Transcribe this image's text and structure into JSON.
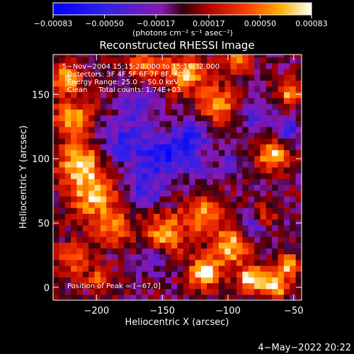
{
  "chart_data": {
    "type": "heatmap",
    "title": "Reconstructed RHESSI Image",
    "xlabel": "Heliocentric X (arcsec)",
    "ylabel": "Heliocentric Y (arcsec)",
    "xlim": [
      -233,
      -44
    ],
    "ylim": [
      -10,
      181
    ],
    "x_ticks": [
      -200,
      -150,
      -100,
      -50
    ],
    "x_tick_labels": [
      "−200",
      "−150",
      "−100",
      "−50"
    ],
    "y_ticks": [
      0,
      50,
      100,
      150
    ],
    "y_tick_labels": [
      "0",
      "50",
      "100",
      "150"
    ],
    "colorbar": {
      "min": -0.00083,
      "max": 0.00083,
      "ticks": [
        -0.00083,
        -0.0005,
        -0.00017,
        0.00017,
        0.0005,
        0.00083
      ],
      "tick_labels": [
        "−0.00083",
        "−0.00050",
        "−0.00017",
        "0.00017",
        "0.00050",
        "0.00083"
      ],
      "units_label": "(photons cm⁻² s⁻¹ asec⁻²)"
    },
    "annotations": [
      "5−Nov−2004 15:15:20.000 to 15:16:32.000",
      "Detectors: 3F 4F 5F 6F 7F 8F, Att 0",
      "Energy Range: 25.0 − 50.0 keV",
      "Clean     Total counts: 1.74E+03"
    ],
    "peak_label": "Position of Peak = [−67,0]",
    "timestamp": "4−May−2022 20:22",
    "grid": false,
    "blobs": [
      {
        "x": -225,
        "y": 160,
        "v": 0.00075,
        "r": 10
      },
      {
        "x": -220,
        "y": 130,
        "v": 0.0006,
        "r": 14
      },
      {
        "x": -215,
        "y": 95,
        "v": 0.0007,
        "r": 16
      },
      {
        "x": -205,
        "y": 70,
        "v": 0.00065,
        "r": 18
      },
      {
        "x": -190,
        "y": 45,
        "v": 0.0005,
        "r": 14
      },
      {
        "x": -222,
        "y": 20,
        "v": 0.00045,
        "r": 12
      },
      {
        "x": -200,
        "y": 5,
        "v": 0.0004,
        "r": 10
      },
      {
        "x": -165,
        "y": 170,
        "v": 0.00055,
        "r": 12
      },
      {
        "x": -135,
        "y": 165,
        "v": 0.0007,
        "r": 14
      },
      {
        "x": -110,
        "y": 140,
        "v": 0.0006,
        "r": 14
      },
      {
        "x": -95,
        "y": 175,
        "v": 0.0005,
        "r": 10
      },
      {
        "x": -150,
        "y": 40,
        "v": 0.0006,
        "r": 16
      },
      {
        "x": -120,
        "y": 55,
        "v": 0.0006,
        "r": 14
      },
      {
        "x": -100,
        "y": 30,
        "v": 0.0007,
        "r": 14
      },
      {
        "x": -120,
        "y": 10,
        "v": 0.0008,
        "r": 12
      },
      {
        "x": -85,
        "y": 5,
        "v": 0.00078,
        "r": 10
      },
      {
        "x": -67,
        "y": 0,
        "v": 0.00083,
        "r": 10
      },
      {
        "x": -55,
        "y": 15,
        "v": 0.0007,
        "r": 8
      },
      {
        "x": -68,
        "y": 100,
        "v": 0.00082,
        "r": 10
      },
      {
        "x": -55,
        "y": 150,
        "v": 0.0006,
        "r": 10
      },
      {
        "x": -75,
        "y": 55,
        "v": 0.0004,
        "r": 8
      },
      {
        "x": -180,
        "y": 110,
        "v": -0.0005,
        "r": 18
      },
      {
        "x": -170,
        "y": 140,
        "v": -0.0004,
        "r": 14
      },
      {
        "x": -150,
        "y": 100,
        "v": -0.0006,
        "r": 16
      },
      {
        "x": -130,
        "y": 115,
        "v": -0.0005,
        "r": 14
      },
      {
        "x": -165,
        "y": 75,
        "v": -0.00045,
        "r": 14
      },
      {
        "x": -80,
        "y": 130,
        "v": -0.0004,
        "r": 12
      },
      {
        "x": -55,
        "y": 120,
        "v": -0.0005,
        "r": 8
      },
      {
        "x": -100,
        "y": 95,
        "v": -0.0003,
        "r": 10
      },
      {
        "x": -160,
        "y": 20,
        "v": -0.00035,
        "r": 10
      },
      {
        "x": -85,
        "y": 45,
        "v": -0.0004,
        "r": 10
      },
      {
        "x": -125,
        "y": 90,
        "v": -0.0003,
        "r": 10
      }
    ]
  }
}
